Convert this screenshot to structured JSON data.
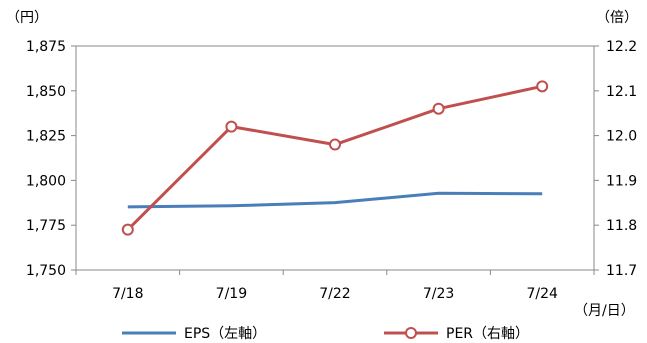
{
  "chart_data": {
    "type": "line",
    "categories": [
      "7/18",
      "7/19",
      "7/22",
      "7/23",
      "7/24"
    ],
    "left_unit": "（円）",
    "right_unit": "（倍）",
    "x_unit": "（月/日）",
    "y_left": {
      "min": 1750,
      "max": 1875,
      "ticks": [
        "1,750",
        "1,775",
        "1,800",
        "1,825",
        "1,850",
        "1,875"
      ],
      "tick_values": [
        1750,
        1775,
        1800,
        1825,
        1850,
        1875
      ]
    },
    "y_right": {
      "min": 11.7,
      "max": 12.2,
      "ticks": [
        "11.7",
        "11.8",
        "11.9",
        "12.0",
        "12.1",
        "12.2"
      ],
      "tick_values": [
        11.7,
        11.8,
        11.9,
        12.0,
        12.1,
        12.2
      ]
    },
    "series": [
      {
        "name": "EPS（左軸）",
        "axis": "left",
        "color": "#4a7ebb",
        "marker": "none",
        "values": [
          1785.2,
          1785.8,
          1787.6,
          1792.8,
          1792.6
        ]
      },
      {
        "name": "PER（右軸）",
        "axis": "right",
        "color": "#c0504d",
        "marker": "circle",
        "values": [
          11.79,
          12.02,
          11.98,
          12.06,
          12.11
        ]
      }
    ],
    "grid": false,
    "legend_position": "bottom"
  }
}
